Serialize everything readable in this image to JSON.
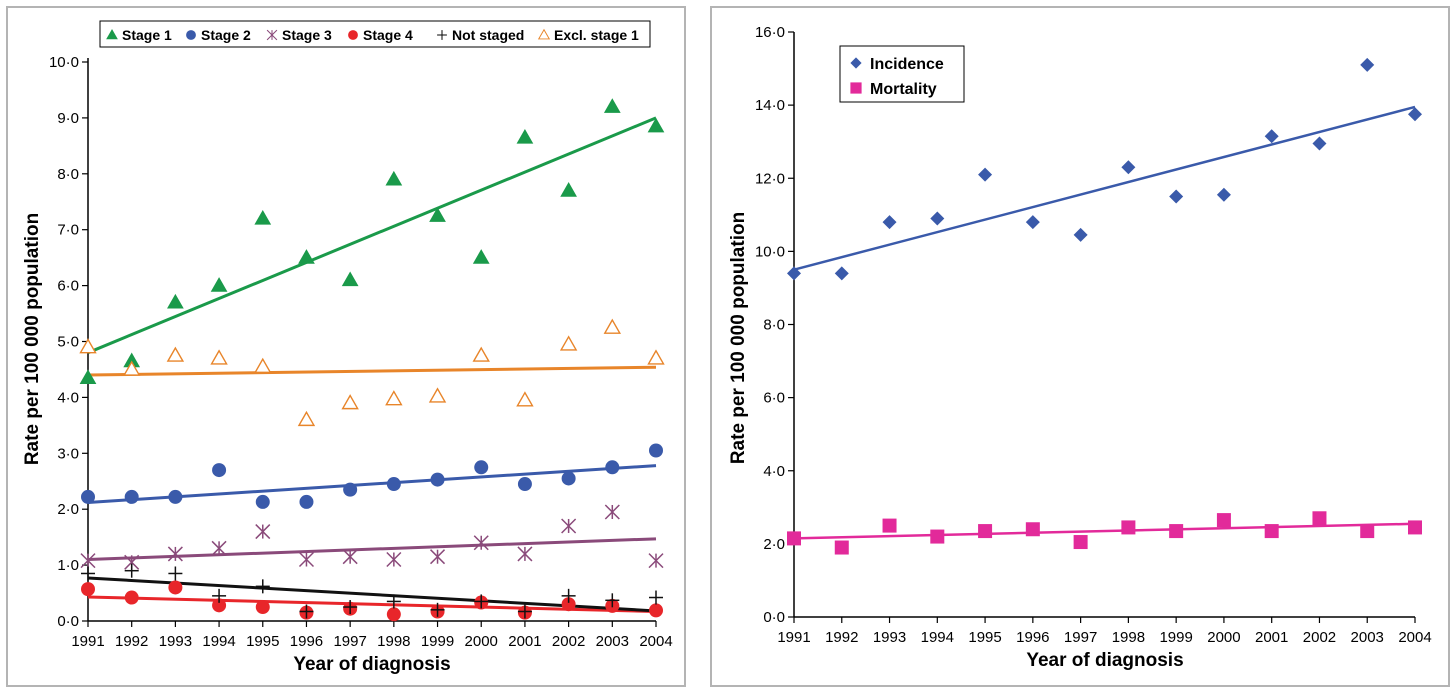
{
  "chart_data": [
    {
      "type": "scatter",
      "xlabel": "Year of diagnosis",
      "ylabel": "Rate per 100 000 population",
      "xlim": [
        1991,
        2004
      ],
      "ylim": [
        0,
        10
      ],
      "x_ticks": [
        "1991",
        "1992",
        "1993",
        "1994",
        "1995",
        "1996",
        "1997",
        "1998",
        "1999",
        "2000",
        "2001",
        "2002",
        "2003",
        "2004"
      ],
      "y_ticks": [
        "0·0",
        "1·0",
        "2·0",
        "3·0",
        "4·0",
        "5·0",
        "6·0",
        "7·0",
        "8·0",
        "9·0",
        "10·0"
      ],
      "legend_position": "top",
      "grid": false,
      "x": [
        1991,
        1992,
        1993,
        1994,
        1995,
        1996,
        1997,
        1998,
        1999,
        2000,
        2001,
        2002,
        2003,
        2004
      ],
      "series": [
        {
          "name": "Stage 1",
          "marker": "triangle-filled",
          "color": "#1a9a4a",
          "values": [
            4.35,
            4.65,
            5.7,
            6.0,
            7.2,
            6.5,
            6.1,
            7.9,
            7.25,
            6.5,
            8.65,
            7.7,
            9.2,
            8.85
          ],
          "trend": [
            4.8,
            9.0
          ]
        },
        {
          "name": "Stage 2",
          "marker": "circle-filled",
          "color": "#3a5aaa",
          "values": [
            2.22,
            2.22,
            2.22,
            2.7,
            2.13,
            2.13,
            2.35,
            2.45,
            2.53,
            2.75,
            2.45,
            2.55,
            2.75,
            3.05
          ],
          "trend": [
            2.12,
            2.78
          ]
        },
        {
          "name": "Stage 3",
          "marker": "asterisk",
          "color": "#8a4a7a",
          "values": [
            1.08,
            1.05,
            1.2,
            1.3,
            1.6,
            1.1,
            1.15,
            1.1,
            1.15,
            1.4,
            1.2,
            1.7,
            1.95,
            1.08
          ],
          "trend": [
            1.1,
            1.47
          ]
        },
        {
          "name": "Stage 4",
          "marker": "circle-filled",
          "color": "#e8262a",
          "values": [
            0.57,
            0.42,
            0.6,
            0.28,
            0.25,
            0.15,
            0.22,
            0.12,
            0.17,
            0.33,
            0.15,
            0.3,
            0.27,
            0.19
          ],
          "trend": [
            0.43,
            0.17
          ]
        },
        {
          "name": "Not staged",
          "marker": "plus",
          "color": "#111111",
          "values": [
            0.85,
            0.9,
            0.85,
            0.45,
            0.62,
            0.17,
            0.25,
            0.35,
            0.2,
            0.35,
            0.17,
            0.45,
            0.37,
            0.42
          ],
          "trend": [
            0.77,
            0.18
          ]
        },
        {
          "name": "Excl. stage 1",
          "marker": "triangle-open",
          "color": "#e8852a",
          "values": [
            4.9,
            4.5,
            4.75,
            4.7,
            4.55,
            3.6,
            3.9,
            3.97,
            4.02,
            4.75,
            3.95,
            4.95,
            5.25,
            4.7
          ],
          "trend": [
            4.4,
            4.54
          ]
        }
      ]
    },
    {
      "type": "scatter",
      "xlabel": "Year of diagnosis",
      "ylabel": "Rate per 100 000 population",
      "xlim": [
        1991,
        2004
      ],
      "ylim": [
        0,
        16
      ],
      "x_ticks": [
        "1991",
        "1992",
        "1993",
        "1994",
        "1995",
        "1996",
        "1997",
        "1998",
        "1999",
        "2000",
        "2001",
        "2002",
        "2003",
        "2004"
      ],
      "y_ticks": [
        "0·0",
        "2·0",
        "4·0",
        "6·0",
        "8·0",
        "10·0",
        "12·0",
        "14·0",
        "16·0"
      ],
      "legend_position": "top-left",
      "grid": false,
      "x": [
        1991,
        1992,
        1993,
        1994,
        1995,
        1996,
        1997,
        1998,
        1999,
        2000,
        2001,
        2002,
        2003,
        2004
      ],
      "series": [
        {
          "name": "Incidence",
          "marker": "diamond-filled",
          "color": "#3a5aaa",
          "values": [
            9.4,
            9.4,
            10.8,
            10.9,
            12.1,
            10.8,
            10.45,
            12.3,
            11.5,
            11.55,
            13.15,
            12.95,
            15.1,
            13.75
          ],
          "trend": [
            9.5,
            13.95
          ]
        },
        {
          "name": "Mortality",
          "marker": "square-filled",
          "color": "#e22a9a",
          "values": [
            2.15,
            1.9,
            2.5,
            2.2,
            2.35,
            2.4,
            2.05,
            2.45,
            2.35,
            2.65,
            2.35,
            2.7,
            2.35,
            2.45
          ],
          "trend": [
            2.15,
            2.55
          ]
        }
      ]
    }
  ]
}
